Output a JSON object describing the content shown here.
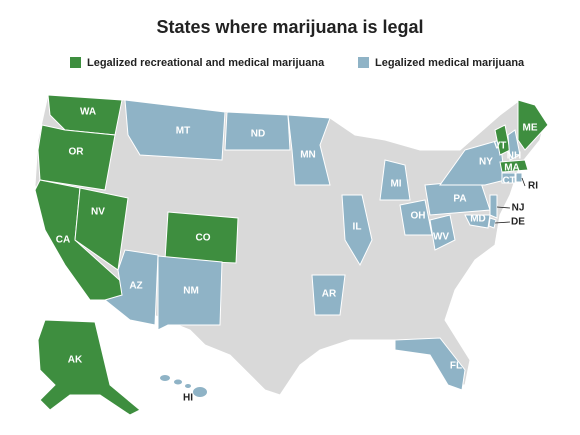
{
  "title": "States where marijuana is legal",
  "legend": [
    {
      "label": "Legalized recreational and medical marijuana",
      "color": "#3e8e3f"
    },
    {
      "label": "Legalized medical marijuana",
      "color": "#8fb3c6"
    }
  ],
  "states": [
    {
      "label": "WA",
      "category": 0
    },
    {
      "label": "OR",
      "category": 0
    },
    {
      "label": "CA",
      "category": 0
    },
    {
      "label": "NV",
      "category": 0
    },
    {
      "label": "CO",
      "category": 0
    },
    {
      "label": "AK",
      "category": 0
    },
    {
      "label": "MT",
      "category": 1
    },
    {
      "label": "ND",
      "category": 1
    },
    {
      "label": "MN",
      "category": 1
    },
    {
      "label": "AZ",
      "category": 1
    },
    {
      "label": "NM",
      "category": 1
    },
    {
      "label": "AR",
      "category": 1
    },
    {
      "label": "IL",
      "category": 1
    },
    {
      "label": "MI",
      "category": 1
    },
    {
      "label": "OH",
      "category": 1
    },
    {
      "label": "PA",
      "category": 1
    },
    {
      "label": "NY",
      "category": 1
    },
    {
      "label": "WV",
      "category": 1
    },
    {
      "label": "FL",
      "category": 1
    },
    {
      "label": "HI",
      "category": 1
    },
    {
      "label": "VT",
      "category": 0
    },
    {
      "label": "NH",
      "category": 1
    },
    {
      "label": "ME",
      "category": 0
    },
    {
      "label": "MA",
      "category": 0
    },
    {
      "label": "CT",
      "category": 1
    },
    {
      "label": "RI",
      "category": 1
    },
    {
      "label": "NJ",
      "category": 1
    },
    {
      "label": "MD",
      "category": 1
    },
    {
      "label": "DE",
      "category": 1
    }
  ]
}
